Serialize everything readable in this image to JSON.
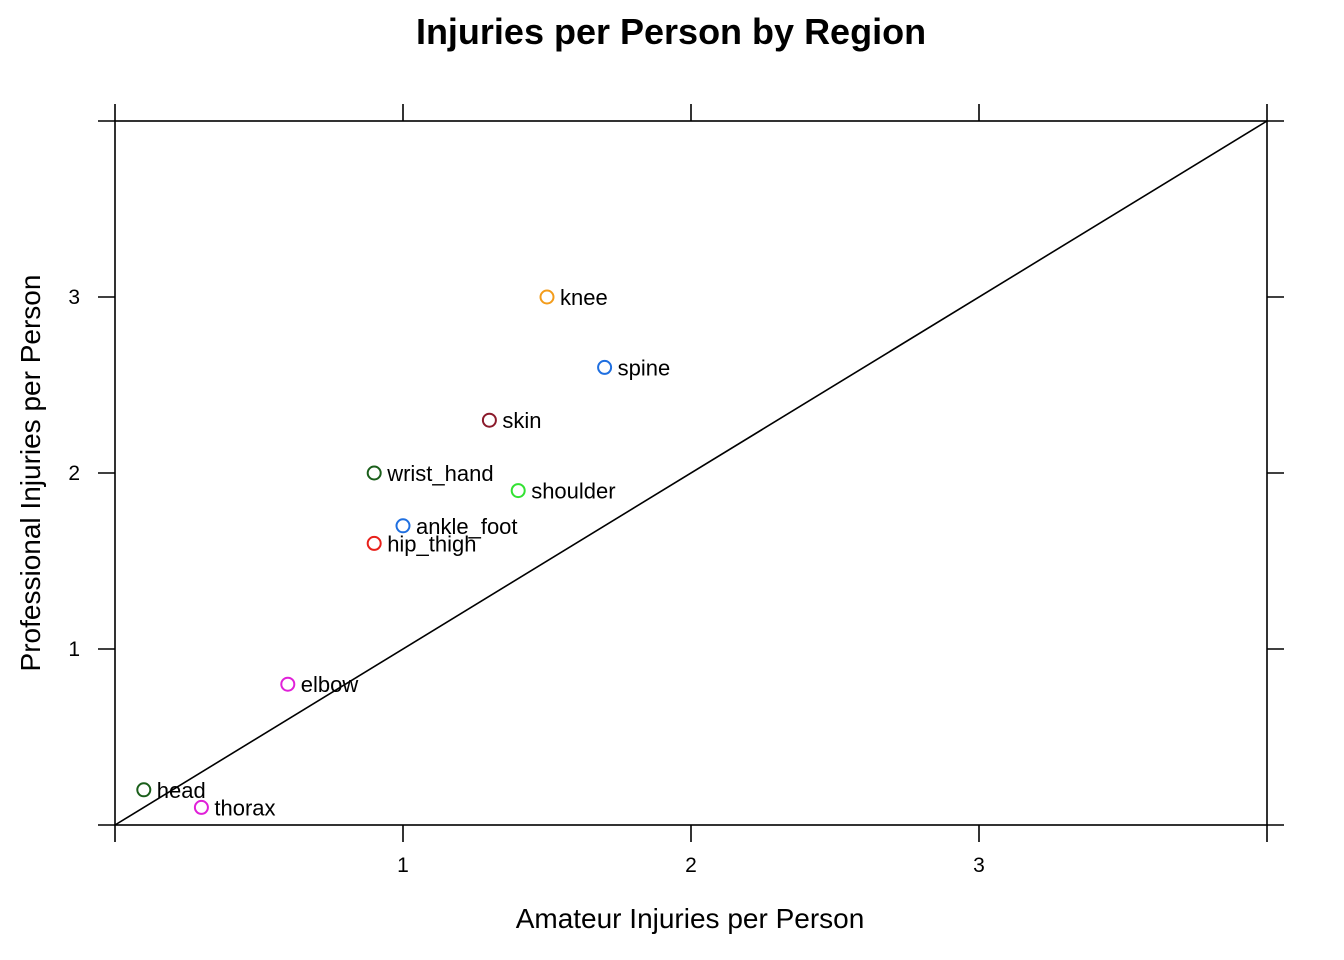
{
  "chart_data": {
    "type": "scatter",
    "title": "Injuries per Person by Region",
    "xlabel": "Amateur Injuries per Person",
    "ylabel": "Professional Injuries per Person",
    "xlim": [
      0,
      4
    ],
    "ylim": [
      0,
      4
    ],
    "x_ticks": [
      1,
      2,
      3
    ],
    "y_ticks": [
      1,
      2,
      3
    ],
    "grid": false,
    "legend": "none",
    "reference_line": {
      "type": "identity",
      "from": [
        0,
        0
      ],
      "to": [
        4,
        4
      ]
    },
    "points": [
      {
        "label": "knee",
        "x": 1.5,
        "y": 3.0,
        "color": "#F39C1B"
      },
      {
        "label": "spine",
        "x": 1.7,
        "y": 2.6,
        "color": "#1F6FE0"
      },
      {
        "label": "skin",
        "x": 1.3,
        "y": 2.3,
        "color": "#8B1A2B"
      },
      {
        "label": "wrist_hand",
        "x": 0.9,
        "y": 2.0,
        "color": "#1A5E1A"
      },
      {
        "label": "shoulder",
        "x": 1.4,
        "y": 1.9,
        "color": "#33E233"
      },
      {
        "label": "ankle_foot",
        "x": 1.0,
        "y": 1.7,
        "color": "#1F6FE0"
      },
      {
        "label": "hip_thigh",
        "x": 0.9,
        "y": 1.6,
        "color": "#E8201A"
      },
      {
        "label": "elbow",
        "x": 0.6,
        "y": 0.8,
        "color": "#E020D8"
      },
      {
        "label": "head",
        "x": 0.1,
        "y": 0.2,
        "color": "#1A5E1A"
      },
      {
        "label": "thorax",
        "x": 0.3,
        "y": 0.1,
        "color": "#E020D8"
      }
    ]
  }
}
